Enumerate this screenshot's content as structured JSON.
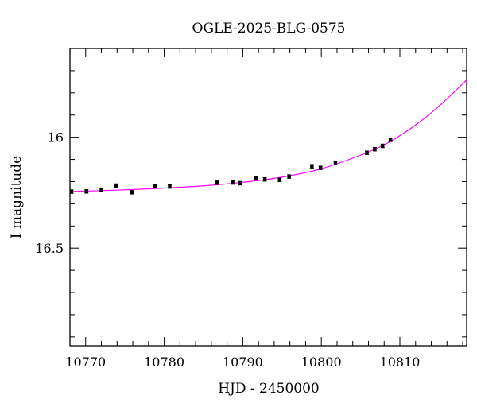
{
  "chart_data": {
    "type": "scatter",
    "title": "OGLE-2025-BLG-0575",
    "xlabel": "HJD - 2450000",
    "ylabel": "I magnitude",
    "xlim": [
      10768,
      10818.5
    ],
    "ylim": [
      16.94,
      15.6
    ],
    "y_inverted": true,
    "grid": false,
    "x_ticks": [
      10770,
      10780,
      10790,
      10800,
      10810
    ],
    "x_tick_labels": [
      "10770",
      "10780",
      "10790",
      "10800",
      "10810"
    ],
    "y_ticks": [
      16,
      16.5
    ],
    "y_tick_labels": [
      "16",
      "16.5"
    ],
    "series": [
      {
        "kind": "points",
        "color": "#000000",
        "x": [
          10768.2,
          10770.1,
          10772.0,
          10773.9,
          10775.9,
          10778.8,
          10780.7,
          10786.7,
          10788.7,
          10789.7,
          10791.7,
          10792.8,
          10794.7,
          10795.9,
          10798.8,
          10799.9,
          10801.8,
          10805.8,
          10806.8,
          10807.8,
          10808.8
        ],
        "y": [
          16.245,
          16.244,
          16.238,
          16.218,
          16.248,
          16.219,
          16.222,
          16.205,
          16.204,
          16.207,
          16.186,
          16.19,
          16.192,
          16.177,
          16.131,
          16.138,
          16.117,
          16.07,
          16.054,
          16.039,
          16.012
        ],
        "yerr": [
          0.008,
          0.008,
          0.008,
          0.008,
          0.008,
          0.008,
          0.008,
          0.008,
          0.008,
          0.008,
          0.008,
          0.008,
          0.008,
          0.008,
          0.008,
          0.008,
          0.008,
          0.008,
          0.008,
          0.008,
          0.008
        ]
      },
      {
        "kind": "model-curve",
        "color": "#ff00ff",
        "x": [
          10768,
          10775,
          10780,
          10785,
          10790,
          10795,
          10800,
          10805,
          10808,
          10810,
          10812,
          10814,
          10816,
          10818.5
        ],
        "y": [
          16.245,
          16.237,
          16.229,
          16.219,
          16.203,
          16.18,
          16.142,
          16.081,
          16.034,
          15.993,
          15.945,
          15.89,
          15.827,
          15.742
        ]
      }
    ]
  }
}
